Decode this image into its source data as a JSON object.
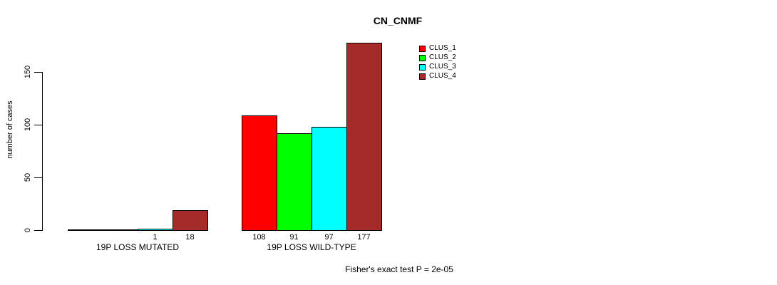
{
  "chart_data": {
    "type": "bar",
    "title": "CN_CNMF",
    "xlabel": "",
    "ylabel": "number of cases",
    "yticks": [
      0,
      50,
      100,
      150
    ],
    "ylim": [
      0,
      180
    ],
    "grid": false,
    "legend_position": "top-right",
    "categories": [
      "19P LOSS MUTATED",
      "19P LOSS WILD-TYPE"
    ],
    "series": [
      {
        "name": "CLUS_1",
        "color": "#FF0000",
        "values": [
          0,
          108
        ]
      },
      {
        "name": "CLUS_2",
        "color": "#00FF00",
        "values": [
          0,
          91
        ]
      },
      {
        "name": "CLUS_3",
        "color": "#00FFFF",
        "values": [
          1,
          97
        ]
      },
      {
        "name": "CLUS_4",
        "color": "#A52A2A",
        "values": [
          18,
          177
        ]
      }
    ],
    "bar_value_labels": [
      [
        "",
        "",
        "1",
        "18"
      ],
      [
        "108",
        "91",
        "97",
        "177"
      ]
    ],
    "annotation": "Fisher's exact test P = 2e-05"
  }
}
